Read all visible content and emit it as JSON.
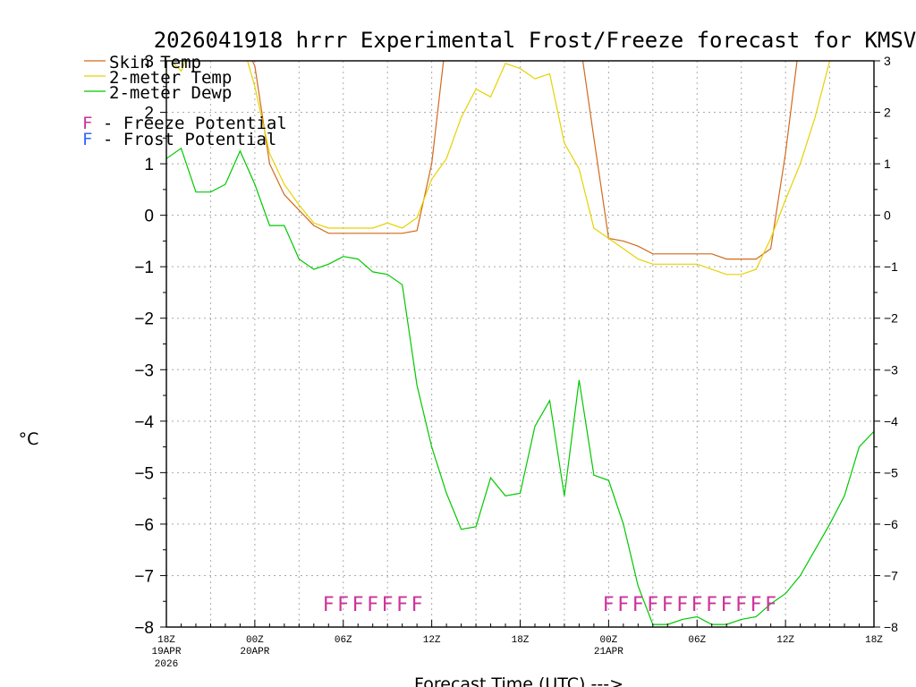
{
  "chart_data": {
    "type": "line",
    "title": "2026041918 hrrr Experimental Frost/Freeze forecast for KMSV",
    "ylabel": "°C",
    "xlabel": "Forecast Time (UTC) --->",
    "ylim": [
      -8,
      3
    ],
    "xlim": [
      0,
      48
    ],
    "yticks": [
      -8,
      -7,
      -6,
      -5,
      -4,
      -3,
      -2,
      -1,
      0,
      1,
      2,
      3
    ],
    "ytick_labels": [
      "−8",
      "−7",
      "−6",
      "−5",
      "−4",
      "−3",
      "−2",
      "−1",
      "0",
      "1",
      "2",
      "3"
    ],
    "xticks": [
      {
        "x": 0,
        "label": "18Z",
        "date1": "19APR",
        "date2": "2026"
      },
      {
        "x": 6,
        "label": "00Z",
        "date1": "20APR",
        "date2": ""
      },
      {
        "x": 12,
        "label": "06Z",
        "date1": "",
        "date2": ""
      },
      {
        "x": 18,
        "label": "12Z",
        "date1": "",
        "date2": ""
      },
      {
        "x": 24,
        "label": "18Z",
        "date1": "",
        "date2": ""
      },
      {
        "x": 30,
        "label": "00Z",
        "date1": "21APR",
        "date2": ""
      },
      {
        "x": 36,
        "label": "06Z",
        "date1": "",
        "date2": ""
      },
      {
        "x": 42,
        "label": "12Z",
        "date1": "",
        "date2": ""
      },
      {
        "x": 48,
        "label": "18Z",
        "date1": "",
        "date2": ""
      }
    ],
    "grid": true,
    "legend": [
      {
        "label": "Skin Temp",
        "color": "#d2691e"
      },
      {
        "label": "2-meter Temp",
        "color": "#e6d200"
      },
      {
        "label": "2-meter Dewp",
        "color": "#00c800"
      }
    ],
    "potential_legend": [
      {
        "letter": "F",
        "text": " - Freeze Potential",
        "color": "#cc3399"
      },
      {
        "letter": "F",
        "text": " - Frost Potential",
        "color": "#3366ff"
      }
    ],
    "series": [
      {
        "name": "Skin Temp",
        "color": "#d2691e",
        "x": [
          0,
          1,
          2,
          3,
          4,
          5,
          6,
          7,
          8,
          9,
          10,
          11,
          12,
          13,
          14,
          15,
          16,
          17,
          18,
          19,
          20,
          21,
          22,
          23,
          24,
          25,
          26,
          27,
          28,
          29,
          30,
          31,
          32,
          33,
          34,
          35,
          36,
          37,
          38,
          39,
          40,
          41,
          42,
          43,
          44,
          45,
          46,
          47,
          48
        ],
        "values": [
          3.5,
          3.5,
          3.5,
          3.5,
          3.5,
          3.5,
          2.9,
          1.0,
          0.4,
          0.1,
          -0.2,
          -0.35,
          -0.35,
          -0.35,
          -0.35,
          -0.35,
          -0.35,
          -0.3,
          1.0,
          3.5,
          3.5,
          3.5,
          3.5,
          3.5,
          3.5,
          3.5,
          3.5,
          3.5,
          3.5,
          1.5,
          -0.45,
          -0.5,
          -0.6,
          -0.75,
          -0.75,
          -0.75,
          -0.75,
          -0.75,
          -0.85,
          -0.85,
          -0.85,
          -0.65,
          1.2,
          3.5,
          3.5,
          3.5,
          3.5,
          3.5,
          3.5
        ]
      },
      {
        "name": "2-meter Temp",
        "color": "#e6d200",
        "x": [
          0,
          1,
          2,
          3,
          4,
          5,
          6,
          7,
          8,
          9,
          10,
          11,
          12,
          13,
          14,
          15,
          16,
          17,
          18,
          19,
          20,
          21,
          22,
          23,
          24,
          25,
          26,
          27,
          28,
          29,
          30,
          31,
          32,
          33,
          34,
          35,
          36,
          37,
          38,
          39,
          40,
          41,
          42,
          43,
          44,
          45,
          46,
          47,
          48
        ],
        "values": [
          3.1,
          2.8,
          3.5,
          3.5,
          3.5,
          3.5,
          2.5,
          1.2,
          0.6,
          0.2,
          -0.15,
          -0.25,
          -0.25,
          -0.25,
          -0.25,
          -0.15,
          -0.25,
          -0.05,
          0.7,
          1.1,
          1.9,
          2.45,
          2.3,
          2.95,
          2.85,
          2.65,
          2.75,
          1.4,
          0.9,
          -0.25,
          -0.45,
          -0.65,
          -0.85,
          -0.95,
          -0.95,
          -0.95,
          -0.95,
          -1.05,
          -1.15,
          -1.15,
          -1.05,
          -0.45,
          0.3,
          1.0,
          1.9,
          3.0,
          3.5,
          3.5,
          3.5
        ]
      },
      {
        "name": "2-meter Dewp",
        "color": "#00c800",
        "x": [
          0,
          1,
          2,
          3,
          4,
          5,
          6,
          7,
          8,
          9,
          10,
          11,
          12,
          13,
          14,
          15,
          16,
          17,
          18,
          19,
          20,
          21,
          22,
          23,
          24,
          25,
          26,
          27,
          28,
          29,
          30,
          31,
          32,
          33,
          34,
          35,
          36,
          37,
          38,
          39,
          40,
          41,
          42,
          43,
          44,
          45,
          46,
          47,
          48
        ],
        "values": [
          1.1,
          1.3,
          0.45,
          0.45,
          0.6,
          1.25,
          0.6,
          -0.2,
          -0.2,
          -0.85,
          -1.05,
          -0.95,
          -0.8,
          -0.85,
          -1.1,
          -1.15,
          -1.35,
          -3.3,
          -4.5,
          -5.4,
          -6.1,
          -6.05,
          -5.1,
          -5.45,
          -5.4,
          -4.1,
          -3.6,
          -5.45,
          -3.2,
          -5.05,
          -5.15,
          -6.0,
          -7.2,
          -7.95,
          -7.95,
          -7.85,
          -7.8,
          -7.95,
          -7.95,
          -7.85,
          -7.8,
          -7.55,
          -7.35,
          -7.0,
          -6.5,
          -6.0,
          -5.45,
          -4.5,
          -4.2
        ]
      }
    ],
    "freeze_potential": {
      "color": "#cc3399",
      "letter": "F",
      "y": -7.55,
      "x": [
        11,
        12,
        13,
        14,
        15,
        16,
        17,
        30,
        31,
        32,
        33,
        34,
        35,
        36,
        37,
        38,
        39,
        40,
        41
      ]
    }
  }
}
